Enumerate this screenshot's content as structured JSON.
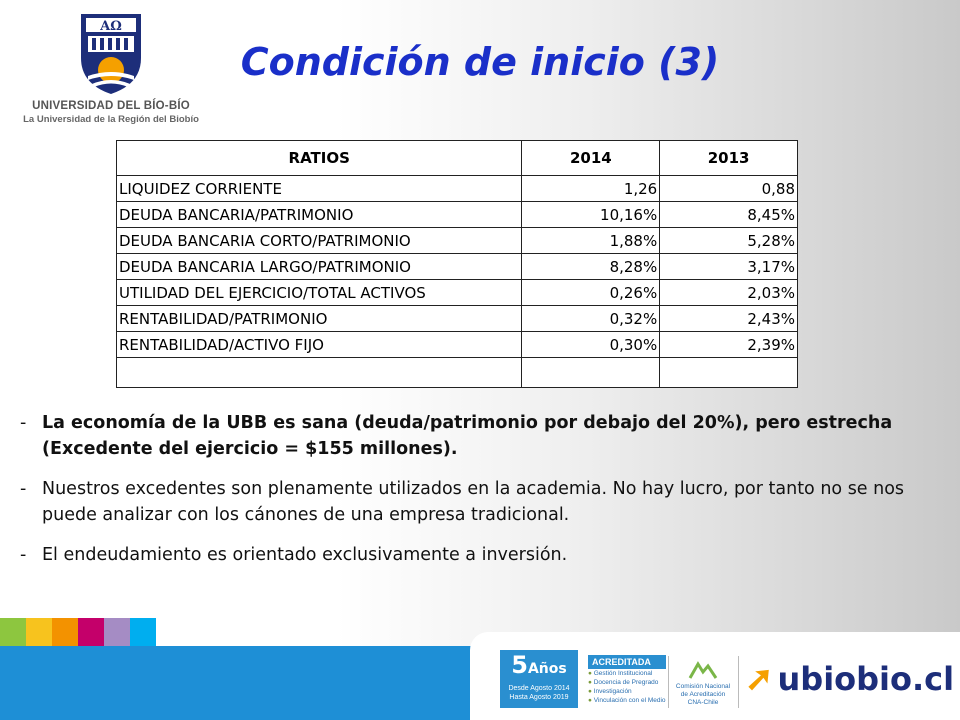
{
  "logo": {
    "name": "UNIVERSIDAD DEL BÍO-BÍO",
    "subtitle": "La Universidad de la Región del Biobío",
    "crest_letters": "AΩ"
  },
  "slide_title": "Condición de inicio (3)",
  "table": {
    "headers": [
      "RATIOS",
      "2014",
      "2013"
    ],
    "rows": [
      [
        "LIQUIDEZ CORRIENTE",
        "1,26",
        "0,88"
      ],
      [
        "DEUDA BANCARIA/PATRIMONIO",
        "10,16%",
        "8,45%"
      ],
      [
        "DEUDA BANCARIA  CORTO/PATRIMONIO",
        "1,88%",
        "5,28%"
      ],
      [
        "DEUDA BANCARIA  LARGO/PATRIMONIO",
        "8,28%",
        "3,17%"
      ],
      [
        "UTILIDAD DEL EJERCICIO/TOTAL  ACTIVOS",
        "0,26%",
        "2,03%"
      ],
      [
        "RENTABILIDAD/PATRIMONIO",
        "0,32%",
        "2,43%"
      ],
      [
        "RENTABILIDAD/ACTIVO  FIJO",
        "0,30%",
        "2,39%"
      ]
    ]
  },
  "bullets": [
    "La economía de la UBB es sana (deuda/patrimonio por debajo del 20%), pero estrecha (Excedente del ejercicio = $155 millones).",
    "Nuestros excedentes son plenamente utilizados en la academia. No hay lucro,  por tanto no se nos puede analizar con los cánones de una empresa tradicional.",
    "El endeudamiento es orientado exclusivamente a inversión."
  ],
  "bullet_dash": "-",
  "colors": {
    "title": "#1a2fc9",
    "footer_blue": "#1e8fd6",
    "strip": [
      "#8dc63f",
      "#f7c31e",
      "#f39200",
      "#c4006a",
      "#a58cc4",
      "#00aeef"
    ]
  },
  "footer": {
    "badge_number": "5",
    "badge_word": "Años",
    "badge_line1": "Desde Agosto 2014",
    "badge_line2": "Hasta Agosto 2019",
    "acreditada": "ACREDITADA",
    "areas": [
      "Gestión Institucional",
      "Docencia de Pregrado",
      "Investigación",
      "Vinculación con el Medio"
    ],
    "cna_line1": "Comisión Nacional",
    "cna_line2": "de Acreditación",
    "cna_line3": "CNA-Chile",
    "website": "ubiobio.cl"
  }
}
